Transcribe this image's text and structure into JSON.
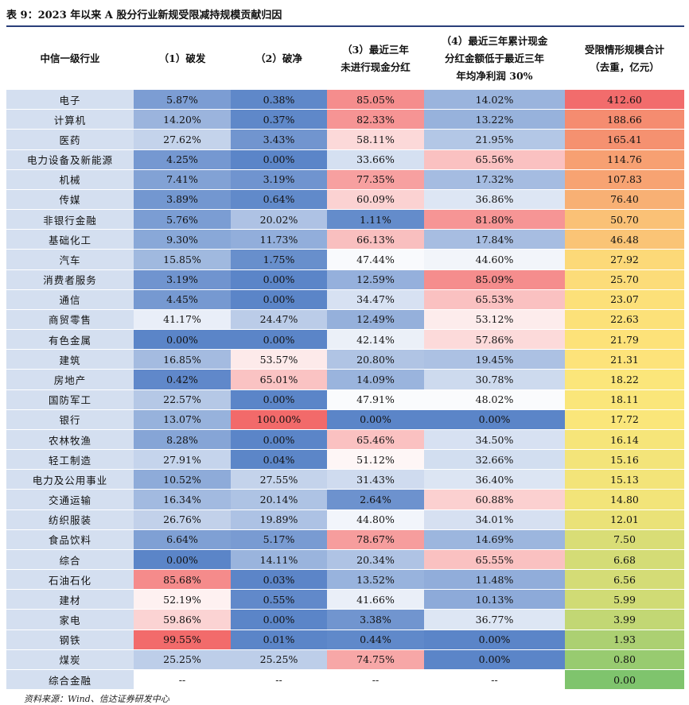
{
  "title": "表 9：2023 年以来 A 股分行业新规受限减持规模贡献归因",
  "source": "资料来源：Wind、信达证券研发中心",
  "headers": [
    "中信一级行业",
    "（1）破发",
    "（2）破净",
    "（3）最近三年\n未进行现金分红",
    "（4）最近三年累计现金\n分红金额低于最近三年\n年均净利润 30%",
    "受限情形规模合计\n（去重，亿元）"
  ],
  "rows": [
    [
      "电子",
      "5.87%",
      "0.38%",
      "85.05%",
      "14.02%",
      "412.60"
    ],
    [
      "计算机",
      "14.20%",
      "0.37%",
      "82.33%",
      "13.22%",
      "188.66"
    ],
    [
      "医药",
      "27.62%",
      "3.43%",
      "58.11%",
      "21.95%",
      "165.41"
    ],
    [
      "电力设备及新能源",
      "4.25%",
      "0.00%",
      "33.66%",
      "65.56%",
      "114.76"
    ],
    [
      "机械",
      "7.41%",
      "3.19%",
      "77.35%",
      "17.32%",
      "107.83"
    ],
    [
      "传媒",
      "3.89%",
      "0.64%",
      "60.09%",
      "36.86%",
      "76.40"
    ],
    [
      "非银行金融",
      "5.76%",
      "20.02%",
      "1.11%",
      "81.80%",
      "50.70"
    ],
    [
      "基础化工",
      "9.30%",
      "11.73%",
      "66.13%",
      "17.84%",
      "46.48"
    ],
    [
      "汽车",
      "15.85%",
      "1.75%",
      "47.44%",
      "44.60%",
      "27.92"
    ],
    [
      "消费者服务",
      "3.19%",
      "0.00%",
      "12.59%",
      "85.09%",
      "25.70"
    ],
    [
      "通信",
      "4.45%",
      "0.00%",
      "34.47%",
      "65.53%",
      "23.07"
    ],
    [
      "商贸零售",
      "41.17%",
      "24.47%",
      "12.49%",
      "53.12%",
      "22.63"
    ],
    [
      "有色金属",
      "0.00%",
      "0.00%",
      "42.14%",
      "57.86%",
      "21.79"
    ],
    [
      "建筑",
      "16.85%",
      "53.57%",
      "20.80%",
      "19.45%",
      "21.31"
    ],
    [
      "房地产",
      "0.42%",
      "65.01%",
      "14.09%",
      "30.78%",
      "18.22"
    ],
    [
      "国防军工",
      "22.57%",
      "0.00%",
      "47.91%",
      "48.02%",
      "18.11"
    ],
    [
      "银行",
      "13.07%",
      "100.00%",
      "0.00%",
      "0.00%",
      "17.72"
    ],
    [
      "农林牧渔",
      "8.28%",
      "0.00%",
      "65.46%",
      "34.50%",
      "16.14"
    ],
    [
      "轻工制造",
      "27.91%",
      "0.04%",
      "51.12%",
      "32.66%",
      "15.16"
    ],
    [
      "电力及公用事业",
      "10.52%",
      "27.55%",
      "31.43%",
      "36.40%",
      "15.13"
    ],
    [
      "交通运输",
      "16.34%",
      "20.14%",
      "2.64%",
      "60.88%",
      "14.80"
    ],
    [
      "纺织服装",
      "26.76%",
      "19.89%",
      "44.80%",
      "34.01%",
      "12.01"
    ],
    [
      "食品饮料",
      "6.64%",
      "5.17%",
      "78.67%",
      "14.69%",
      "7.50"
    ],
    [
      "综合",
      "0.00%",
      "14.11%",
      "20.34%",
      "65.55%",
      "6.68"
    ],
    [
      "石油石化",
      "85.68%",
      "0.03%",
      "13.52%",
      "11.48%",
      "6.56"
    ],
    [
      "建材",
      "52.19%",
      "0.55%",
      "41.66%",
      "10.13%",
      "5.99"
    ],
    [
      "家电",
      "59.86%",
      "0.00%",
      "3.38%",
      "36.77%",
      "3.99"
    ],
    [
      "钢铁",
      "99.55%",
      "0.01%",
      "0.44%",
      "0.00%",
      "1.93"
    ],
    [
      "煤炭",
      "25.25%",
      "25.25%",
      "74.75%",
      "0.00%",
      "0.80"
    ],
    [
      "综合金融",
      "--",
      "--",
      "--",
      "--",
      "0.00"
    ]
  ],
  "heatmap_colors": {
    "low_blue": "#5b85c8",
    "mid": "#ffffff",
    "high_red": "#f26a6a",
    "total_green": "#7fc46d",
    "total_yellow": "#fde77a",
    "total_red": "#f26c6c",
    "category_bg": "#d4dff0"
  }
}
